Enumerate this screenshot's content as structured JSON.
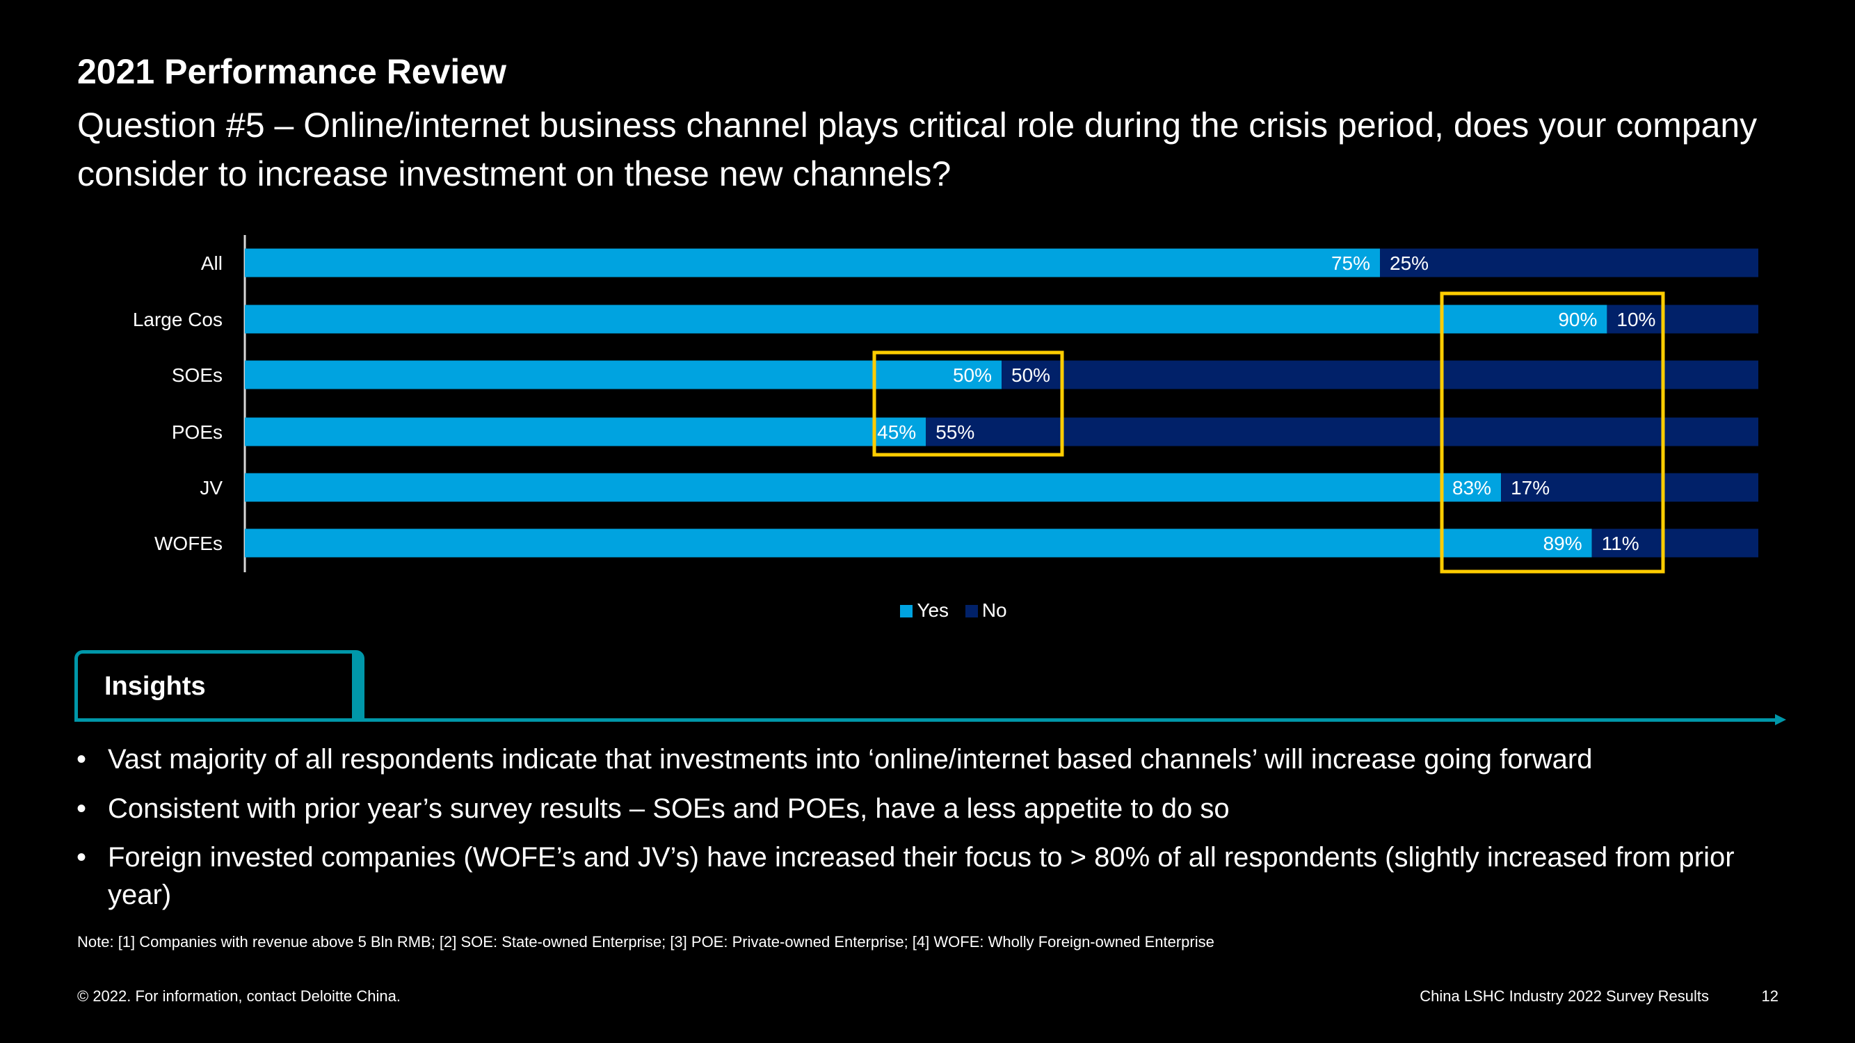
{
  "header": {
    "title": "2021 Performance Review",
    "question": "Question #5 – Online/internet business channel plays critical role during the crisis period, does your company consider to increase investment on these new channels?"
  },
  "colors": {
    "yes": "#00a3e0",
    "no": "#012169",
    "highlight": "#ffcd00",
    "accent": "#0097a9"
  },
  "chart_data": {
    "type": "bar",
    "orientation": "horizontal",
    "stacked": true,
    "categories": [
      "All",
      "Large Cos",
      "SOEs",
      "POEs",
      "JV",
      "WOFEs"
    ],
    "series": [
      {
        "name": "Yes",
        "values": [
          75,
          90,
          50,
          45,
          83,
          89
        ],
        "labels": [
          "75%",
          "90%",
          "50%",
          "45%",
          "83%",
          "89%"
        ]
      },
      {
        "name": "No",
        "values": [
          25,
          10,
          50,
          55,
          17,
          11
        ],
        "labels": [
          "25%",
          "10%",
          "50%",
          "55%",
          "17%",
          "11%"
        ]
      }
    ],
    "xlim": [
      0,
      100
    ],
    "legend": "bottom",
    "grid": false,
    "highlights": [
      {
        "categories": [
          "SOEs",
          "POEs"
        ]
      },
      {
        "categories": [
          "Large Cos",
          "SOEs",
          "POEs",
          "JV",
          "WOFEs"
        ]
      }
    ]
  },
  "insights": {
    "label": "Insights",
    "bullets": [
      "Vast majority of all respondents indicate that investments into ‘online/internet based channels’ will increase going forward",
      "Consistent with prior year’s survey results – SOEs and POEs, have a less appetite to do so",
      "Foreign invested companies (WOFE’s and JV’s) have increased their focus to > 80% of all respondents (slightly increased from prior year)"
    ]
  },
  "note": "Note: [1] Companies with revenue above 5 Bln RMB; [2] SOE: State-owned Enterprise; [3] POE: Private-owned Enterprise; [4] WOFE: Wholly Foreign-owned Enterprise",
  "footer": {
    "copyright": "© 2022. For information, contact Deloitte China.",
    "doc": "China LSHC Industry 2022 Survey Results",
    "page": "12"
  }
}
